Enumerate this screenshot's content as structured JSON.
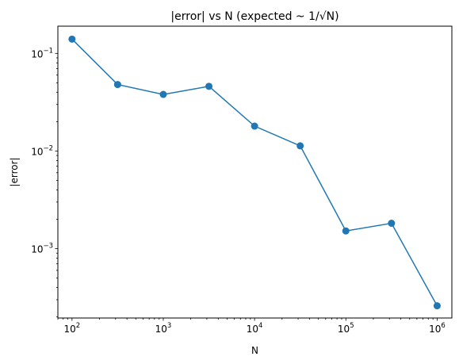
{
  "chart_data": {
    "type": "line",
    "title": "|error| vs N (expected ~ 1/√N)",
    "xlabel": "N",
    "ylabel": "|error|",
    "xscale": "log",
    "yscale": "log",
    "xlim": [
      70,
      1450000
    ],
    "ylim": [
      0.000195,
      0.19
    ],
    "grid": false,
    "legend": "none",
    "x_major_ticks": [
      {
        "value": 100,
        "base": "10",
        "exp": "2"
      },
      {
        "value": 1000,
        "base": "10",
        "exp": "3"
      },
      {
        "value": 10000,
        "base": "10",
        "exp": "4"
      },
      {
        "value": 100000,
        "base": "10",
        "exp": "5"
      },
      {
        "value": 1000000,
        "base": "10",
        "exp": "6"
      }
    ],
    "y_major_ticks": [
      {
        "value": 0.001,
        "base": "10",
        "exp": "−3"
      },
      {
        "value": 0.01,
        "base": "10",
        "exp": "−2"
      },
      {
        "value": 0.1,
        "base": "10",
        "exp": "−1"
      }
    ],
    "series": [
      {
        "color": "#1f77b4",
        "marker": "circle",
        "x": [
          100,
          316,
          1000,
          3162,
          10000,
          31623,
          100000,
          316228,
          1000000
        ],
        "y": [
          0.14,
          0.048,
          0.038,
          0.046,
          0.018,
          0.0113,
          0.00152,
          0.00182,
          0.00026
        ]
      }
    ]
  }
}
